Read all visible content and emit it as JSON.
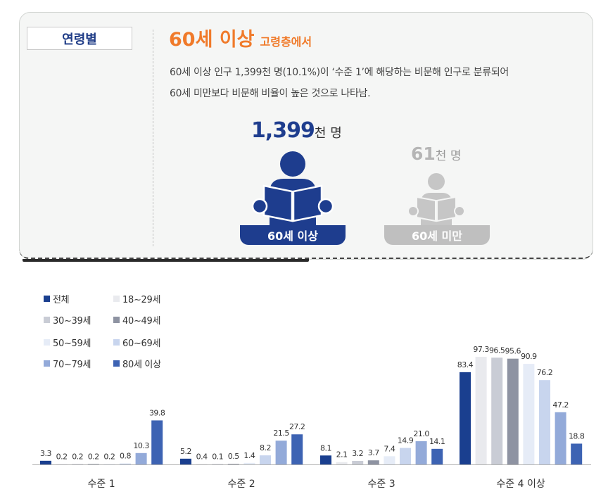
{
  "panel": {
    "tab_label": "연령별",
    "heading_main": "60세  이상",
    "heading_sub": "고령층에서",
    "desc_line1": "60세 이상 인구 1,399천 명(10.1%)이 ‘수준 1’에 해당하는 비문해 인구로 분류되어",
    "desc_line2": "60세 미만보다 비문해 비율이 높은 것으로 나타남.",
    "over60": {
      "value": "1,399",
      "unit": "천 명",
      "label": "60세 이상",
      "color": "#1e3d8e"
    },
    "under60": {
      "value": "61",
      "unit": "천 명",
      "label": "60세 미만",
      "color": "#bfbfbf"
    }
  },
  "chart_data": {
    "type": "bar",
    "categories": [
      "수준 1",
      "수준 2",
      "수준 3",
      "수준 4 이상"
    ],
    "series": [
      {
        "name": "전체",
        "color": "#1a3f8f",
        "values": [
          3.3,
          5.2,
          8.1,
          83.4
        ]
      },
      {
        "name": "18~29세",
        "color": "#e9eaee",
        "values": [
          0.2,
          0.4,
          2.1,
          97.3
        ]
      },
      {
        "name": "30~39세",
        "color": "#c9ccd5",
        "values": [
          0.2,
          0.1,
          3.2,
          96.5
        ]
      },
      {
        "name": "40~49세",
        "color": "#8e93a2",
        "values": [
          0.2,
          0.5,
          3.7,
          95.6
        ]
      },
      {
        "name": "50~59세",
        "color": "#e6ecf7",
        "values": [
          0.2,
          1.4,
          7.4,
          90.9
        ]
      },
      {
        "name": "60~69세",
        "color": "#c8d5ee",
        "values": [
          0.8,
          8.2,
          14.9,
          76.2
        ]
      },
      {
        "name": "70~79세",
        "color": "#93aad9",
        "values": [
          10.3,
          21.5,
          21.0,
          47.2
        ]
      },
      {
        "name": "80세 이상",
        "color": "#3d63b3",
        "values": [
          39.8,
          27.2,
          14.1,
          18.8
        ]
      }
    ],
    "labels": [
      [
        "3.3",
        "0.2",
        "0.2",
        "0.2",
        "0.2",
        "0.8",
        "10.3",
        "39.8"
      ],
      [
        "5.2",
        "0.4",
        "0.1",
        "0.5",
        "1.4",
        "8.2",
        "21.5",
        "27.2"
      ],
      [
        "8.1",
        "2.1",
        "3.2",
        "3.7",
        "7.4",
        "14.9",
        "21.0",
        "14.1"
      ],
      [
        "83.4",
        "97.3",
        "96.5",
        "95.6",
        "90.9",
        "76.2",
        "47.2",
        "18.8"
      ]
    ],
    "ylim": [
      0,
      100
    ],
    "grid": false,
    "legend_position": "top-left"
  }
}
